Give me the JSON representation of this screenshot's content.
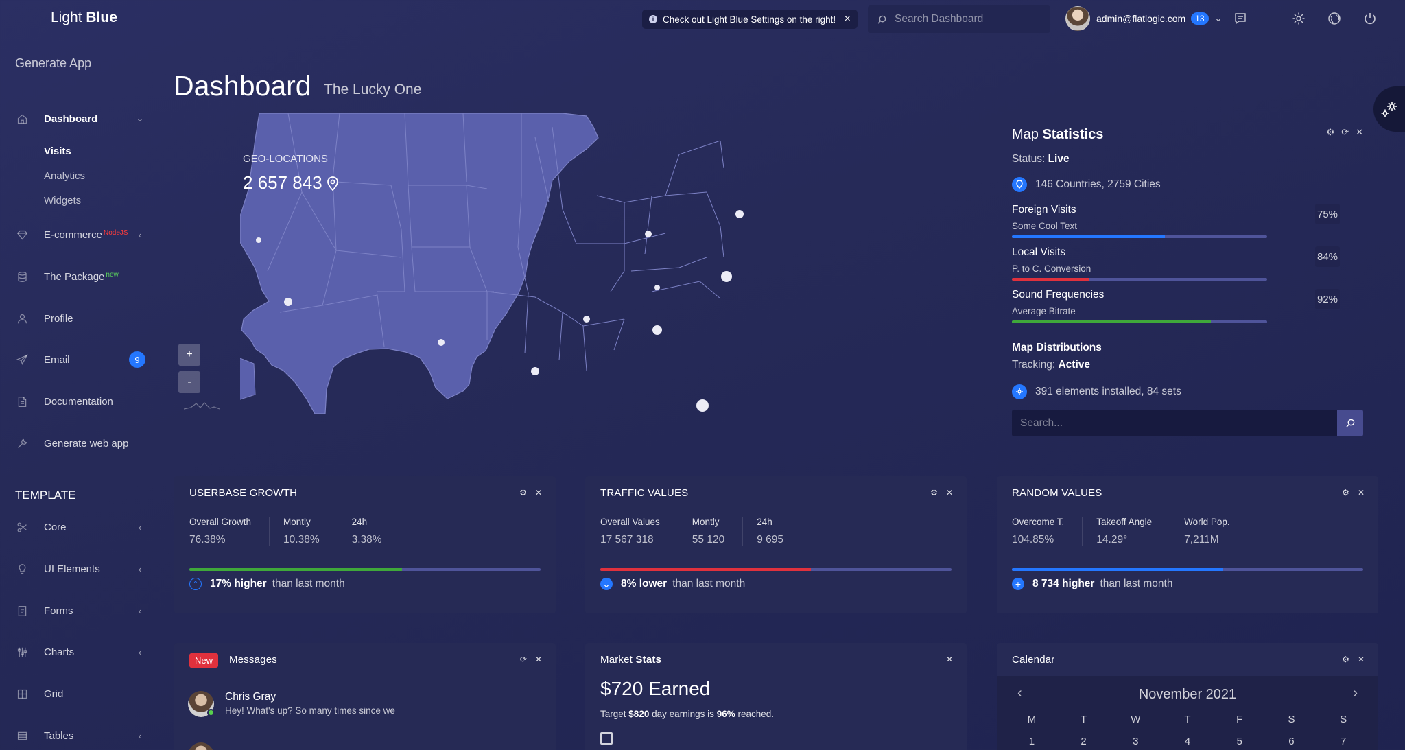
{
  "brand": {
    "light": "Light",
    "bold": "Blue"
  },
  "sidebar": {
    "generate_app": "Generate App",
    "items": [
      {
        "label": "Dashboard",
        "icon": "home-icon"
      },
      {
        "label": "E-commerce",
        "sup": "NodeJS",
        "icon": "diamond-icon"
      },
      {
        "label": "The Package",
        "sup": "new",
        "icon": "database-icon"
      },
      {
        "label": "Profile",
        "icon": "user-icon"
      },
      {
        "label": "Email",
        "badge": "9",
        "icon": "send-icon"
      },
      {
        "label": "Documentation",
        "icon": "document-icon"
      },
      {
        "label": "Generate web app",
        "icon": "wrench-icon"
      }
    ],
    "subitems": [
      "Visits",
      "Analytics",
      "Widgets"
    ],
    "template_title": "TEMPLATE",
    "template_items": [
      "Core",
      "UI Elements",
      "Forms",
      "Charts",
      "Grid",
      "Tables"
    ]
  },
  "header": {
    "notice": "Check out Light Blue Settings on the right!",
    "search_placeholder": "Search Dashboard",
    "user_email": "admin@flatlogic.com",
    "notif_count": "13"
  },
  "page": {
    "title": "Dashboard",
    "subtitle": "The Lucky One"
  },
  "map": {
    "geo_label": "GEO-LOCATIONS",
    "geo_value": "2 657 843",
    "zoom_in": "+",
    "zoom_out": "-"
  },
  "map_stats": {
    "title_light": "Map",
    "title_bold": "Statistics",
    "status_label": "Status:",
    "status_value": "Live",
    "countries": "146 Countries, 2759 Cities",
    "rows": [
      {
        "title": "Foreign Visits",
        "sub": "Some Cool Text",
        "pct": "75%",
        "fill": 0.6,
        "color": "#2477ff"
      },
      {
        "title": "Local Visits",
        "sub": "P. to C. Conversion",
        "pct": "84%",
        "fill": 0.3,
        "color": "#e0313d"
      },
      {
        "title": "Sound Frequencies",
        "sub": "Average Bitrate",
        "pct": "92%",
        "fill": 0.78,
        "color": "#3fa83a"
      }
    ],
    "distributions_title": "Map Distributions",
    "tracking_label": "Tracking:",
    "tracking_value": "Active",
    "installed": "391 elements installed, 84 sets",
    "search_placeholder": "Search..."
  },
  "cards": [
    {
      "title": "USERBASE GROWTH",
      "kpis": [
        {
          "k": "Overall Growth",
          "v": "76.38%"
        },
        {
          "k": "Montly",
          "v": "10.38%"
        },
        {
          "k": "24h",
          "v": "3.38%"
        }
      ],
      "progress": 0.605,
      "bar_color": "#3fa83a",
      "foot_bold": "17% higher",
      "foot_text": "than last month"
    },
    {
      "title": "TRAFFIC VALUES",
      "kpis": [
        {
          "k": "Overall Values",
          "v": "17 567 318"
        },
        {
          "k": "Montly",
          "v": "55 120"
        },
        {
          "k": "24h",
          "v": "9 695"
        }
      ],
      "progress": 0.6,
      "bar_color": "#e0313d",
      "foot_bold": "8% lower",
      "foot_text": "than last month"
    },
    {
      "title": "RANDOM VALUES",
      "kpis": [
        {
          "k": "Overcome T.",
          "v": "104.85%"
        },
        {
          "k": "Takeoff Angle",
          "v": "14.29°"
        },
        {
          "k": "World Pop.",
          "v": "7,211M"
        }
      ],
      "progress": 0.6,
      "bar_color": "#2477ff",
      "foot_bold": "8 734 higher",
      "foot_text": "than last month"
    }
  ],
  "messages": {
    "badge": "New",
    "title": "Messages",
    "items": [
      {
        "name": "Chris Gray",
        "text": "Hey! What's up? So many times since we"
      }
    ]
  },
  "market": {
    "title_light": "Market",
    "title_bold": "Stats",
    "earned": "$720 Earned",
    "target_pre": "Target",
    "target_amount": "$820",
    "target_mid": "day earnings is",
    "target_pct": "96%",
    "target_post": "reached."
  },
  "calendar": {
    "title": "Calendar",
    "month": "November 2021",
    "weekdays": [
      "M",
      "T",
      "W",
      "T",
      "F",
      "S",
      "S"
    ],
    "first_row": [
      "1",
      "2",
      "3",
      "4",
      "5",
      "6",
      "7"
    ]
  }
}
